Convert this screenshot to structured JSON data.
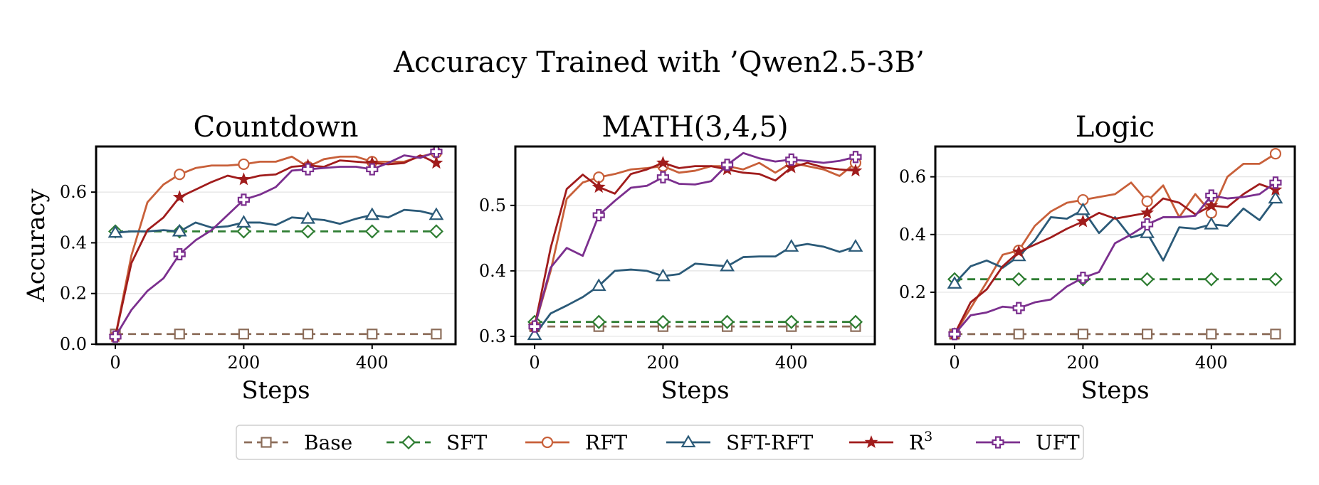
{
  "figure": {
    "title": "Accuracy Trained with ’Qwen2.5-3B’"
  },
  "legend": {
    "placement": "bottom-center",
    "entries": [
      {
        "name": "Base",
        "superscript": "",
        "color": "#8c6d5a",
        "marker": "square",
        "dashed": true
      },
      {
        "name": "SFT",
        "superscript": "",
        "color": "#2e7d32",
        "marker": "diamond",
        "dashed": true
      },
      {
        "name": "RFT",
        "superscript": "",
        "color": "#c8603a",
        "marker": "circle",
        "dashed": false
      },
      {
        "name": "SFT-RFT",
        "superscript": "",
        "color": "#2b5a78",
        "marker": "triangle",
        "dashed": false
      },
      {
        "name": "R",
        "superscript": "3",
        "color": "#a01c1c",
        "marker": "star",
        "dashed": false
      },
      {
        "name": "UFT",
        "superscript": "",
        "color": "#7b2f8e",
        "marker": "plus",
        "dashed": false
      }
    ]
  },
  "chart_data": [
    {
      "type": "line",
      "title": "Countdown",
      "xlabel": "Steps",
      "ylabel": "Accuracy",
      "xlim": [
        -30,
        530
      ],
      "ylim": [
        0.0,
        0.78
      ],
      "xticks": [
        0,
        200,
        400
      ],
      "yticks": [
        0.0,
        0.2,
        0.4,
        0.6
      ],
      "ytick_labels": [
        "0.0",
        "0.2",
        "0.4",
        "0.6"
      ],
      "grid": "horizontal",
      "series": [
        {
          "name": "Base",
          "x": [
            0,
            100,
            200,
            300,
            400,
            500
          ],
          "y": [
            0.04,
            0.04,
            0.04,
            0.04,
            0.04,
            0.04
          ],
          "marker_x": [
            0,
            100,
            200,
            300,
            400,
            500
          ]
        },
        {
          "name": "SFT",
          "x": [
            0,
            100,
            200,
            300,
            400,
            500
          ],
          "y": [
            0.445,
            0.445,
            0.445,
            0.445,
            0.445,
            0.445
          ],
          "marker_x": [
            0,
            100,
            200,
            300,
            400,
            500
          ]
        },
        {
          "name": "RFT",
          "x": [
            0,
            25,
            50,
            75,
            100,
            125,
            150,
            175,
            200,
            225,
            250,
            275,
            300,
            325,
            350,
            375,
            400,
            425,
            450,
            475,
            500
          ],
          "y": [
            0.03,
            0.35,
            0.56,
            0.63,
            0.67,
            0.695,
            0.705,
            0.705,
            0.71,
            0.72,
            0.72,
            0.74,
            0.7,
            0.73,
            0.74,
            0.74,
            0.72,
            0.72,
            0.72,
            0.74,
            0.755
          ],
          "marker_x": [
            0,
            100,
            200,
            300,
            400,
            500
          ]
        },
        {
          "name": "SFT-RFT",
          "x": [
            0,
            25,
            50,
            75,
            100,
            125,
            150,
            175,
            200,
            225,
            250,
            275,
            300,
            325,
            350,
            375,
            400,
            425,
            450,
            475,
            500
          ],
          "y": [
            0.44,
            0.445,
            0.445,
            0.45,
            0.445,
            0.48,
            0.46,
            0.465,
            0.48,
            0.48,
            0.47,
            0.5,
            0.495,
            0.49,
            0.475,
            0.495,
            0.51,
            0.5,
            0.53,
            0.525,
            0.51
          ],
          "marker_x": [
            0,
            100,
            200,
            300,
            400,
            500
          ]
        },
        {
          "name": "R3",
          "x": [
            0,
            25,
            50,
            75,
            100,
            125,
            150,
            175,
            200,
            225,
            250,
            275,
            300,
            325,
            350,
            375,
            400,
            425,
            450,
            475,
            500
          ],
          "y": [
            0.03,
            0.32,
            0.45,
            0.5,
            0.58,
            0.61,
            0.64,
            0.665,
            0.65,
            0.665,
            0.67,
            0.7,
            0.705,
            0.7,
            0.725,
            0.72,
            0.715,
            0.71,
            0.715,
            0.745,
            0.715
          ],
          "marker_x": [
            0,
            100,
            200,
            300,
            400,
            500
          ]
        },
        {
          "name": "UFT",
          "x": [
            0,
            25,
            50,
            75,
            100,
            125,
            150,
            175,
            200,
            225,
            250,
            275,
            300,
            325,
            350,
            375,
            400,
            425,
            450,
            475,
            500
          ],
          "y": [
            0.03,
            0.135,
            0.21,
            0.26,
            0.355,
            0.41,
            0.45,
            0.51,
            0.57,
            0.59,
            0.62,
            0.685,
            0.69,
            0.695,
            0.7,
            0.7,
            0.69,
            0.715,
            0.745,
            0.735,
            0.76
          ],
          "marker_x": [
            0,
            100,
            200,
            300,
            400,
            500
          ]
        }
      ]
    },
    {
      "type": "line",
      "title": "MATH(3,4,5)",
      "xlabel": "Steps",
      "ylabel": "",
      "xlim": [
        -30,
        530
      ],
      "ylim": [
        0.288,
        0.59
      ],
      "xticks": [
        0,
        200,
        400
      ],
      "yticks": [
        0.3,
        0.4,
        0.5
      ],
      "ytick_labels": [
        "0.3",
        "0.4",
        "0.5"
      ],
      "grid": "horizontal",
      "series": [
        {
          "name": "Base",
          "x": [
            0,
            100,
            200,
            300,
            400,
            500
          ],
          "y": [
            0.315,
            0.315,
            0.315,
            0.315,
            0.315,
            0.315
          ],
          "marker_x": [
            0,
            100,
            200,
            300,
            400,
            500
          ]
        },
        {
          "name": "SFT",
          "x": [
            0,
            100,
            200,
            300,
            400,
            500
          ],
          "y": [
            0.322,
            0.322,
            0.322,
            0.322,
            0.322,
            0.322
          ],
          "marker_x": [
            0,
            100,
            200,
            300,
            400,
            500
          ]
        },
        {
          "name": "RFT",
          "x": [
            0,
            25,
            50,
            75,
            100,
            125,
            150,
            175,
            200,
            225,
            250,
            275,
            300,
            325,
            350,
            375,
            400,
            425,
            450,
            475,
            500
          ],
          "y": [
            0.315,
            0.4,
            0.51,
            0.535,
            0.543,
            0.548,
            0.555,
            0.557,
            0.56,
            0.55,
            0.553,
            0.56,
            0.56,
            0.555,
            0.565,
            0.55,
            0.565,
            0.56,
            0.555,
            0.545,
            0.565
          ],
          "marker_x": [
            0,
            100,
            200,
            300,
            400,
            500
          ]
        },
        {
          "name": "SFT-RFT",
          "x": [
            0,
            25,
            50,
            75,
            100,
            125,
            150,
            175,
            200,
            225,
            250,
            275,
            300,
            325,
            350,
            375,
            400,
            425,
            450,
            475,
            500
          ],
          "y": [
            0.302,
            0.335,
            0.347,
            0.36,
            0.377,
            0.4,
            0.402,
            0.4,
            0.392,
            0.395,
            0.411,
            0.409,
            0.407,
            0.421,
            0.422,
            0.422,
            0.437,
            0.441,
            0.437,
            0.429,
            0.437
          ],
          "marker_x": [
            0,
            100,
            200,
            300,
            400,
            500
          ]
        },
        {
          "name": "R3",
          "x": [
            0,
            25,
            50,
            75,
            100,
            125,
            150,
            175,
            200,
            225,
            250,
            275,
            300,
            325,
            350,
            375,
            400,
            425,
            450,
            475,
            500
          ],
          "y": [
            0.315,
            0.435,
            0.525,
            0.547,
            0.528,
            0.518,
            0.548,
            0.555,
            0.565,
            0.557,
            0.56,
            0.56,
            0.555,
            0.55,
            0.548,
            0.538,
            0.558,
            0.565,
            0.558,
            0.555,
            0.553
          ],
          "marker_x": [
            0,
            100,
            200,
            300,
            400,
            500
          ]
        },
        {
          "name": "UFT",
          "x": [
            0,
            25,
            50,
            75,
            100,
            125,
            150,
            175,
            200,
            225,
            250,
            275,
            300,
            325,
            350,
            375,
            400,
            425,
            450,
            475,
            500
          ],
          "y": [
            0.315,
            0.405,
            0.435,
            0.423,
            0.485,
            0.507,
            0.527,
            0.53,
            0.543,
            0.533,
            0.532,
            0.537,
            0.562,
            0.58,
            0.572,
            0.567,
            0.57,
            0.568,
            0.565,
            0.568,
            0.574
          ],
          "marker_x": [
            0,
            100,
            200,
            300,
            400,
            500
          ]
        }
      ]
    },
    {
      "type": "line",
      "title": "Logic",
      "xlabel": "Steps",
      "ylabel": "",
      "xlim": [
        -30,
        530
      ],
      "ylim": [
        0.02,
        0.705
      ],
      "xticks": [
        0,
        200,
        400
      ],
      "yticks": [
        0.2,
        0.4,
        0.6
      ],
      "ytick_labels": [
        "0.2",
        "0.4",
        "0.6"
      ],
      "grid": "horizontal",
      "series": [
        {
          "name": "Base",
          "x": [
            0,
            100,
            200,
            300,
            400,
            500
          ],
          "y": [
            0.055,
            0.055,
            0.055,
            0.055,
            0.055,
            0.055
          ],
          "marker_x": [
            0,
            100,
            200,
            300,
            400,
            500
          ]
        },
        {
          "name": "SFT",
          "x": [
            0,
            100,
            200,
            300,
            400,
            500
          ],
          "y": [
            0.245,
            0.245,
            0.245,
            0.245,
            0.245,
            0.245
          ],
          "marker_x": [
            0,
            100,
            200,
            300,
            400,
            500
          ]
        },
        {
          "name": "RFT",
          "x": [
            0,
            25,
            50,
            75,
            100,
            125,
            150,
            175,
            200,
            225,
            250,
            275,
            300,
            325,
            350,
            375,
            400,
            425,
            450,
            475,
            500
          ],
          "y": [
            0.055,
            0.145,
            0.235,
            0.33,
            0.345,
            0.43,
            0.48,
            0.51,
            0.52,
            0.53,
            0.54,
            0.58,
            0.515,
            0.57,
            0.46,
            0.54,
            0.475,
            0.6,
            0.645,
            0.645,
            0.68
          ],
          "marker_x": [
            0,
            100,
            200,
            300,
            400,
            500
          ]
        },
        {
          "name": "SFT-RFT",
          "x": [
            0,
            25,
            50,
            75,
            100,
            125,
            150,
            175,
            200,
            225,
            250,
            275,
            300,
            325,
            350,
            375,
            400,
            425,
            450,
            475,
            500
          ],
          "y": [
            0.23,
            0.29,
            0.31,
            0.285,
            0.325,
            0.38,
            0.46,
            0.455,
            0.485,
            0.405,
            0.46,
            0.39,
            0.405,
            0.31,
            0.425,
            0.42,
            0.435,
            0.43,
            0.49,
            0.45,
            0.525
          ],
          "marker_x": [
            0,
            100,
            200,
            300,
            400,
            500
          ]
        },
        {
          "name": "R3",
          "x": [
            0,
            25,
            50,
            75,
            100,
            125,
            150,
            175,
            200,
            225,
            250,
            275,
            300,
            325,
            350,
            375,
            400,
            425,
            450,
            475,
            500
          ],
          "y": [
            0.055,
            0.165,
            0.21,
            0.29,
            0.34,
            0.365,
            0.39,
            0.42,
            0.445,
            0.475,
            0.455,
            0.465,
            0.475,
            0.525,
            0.51,
            0.47,
            0.5,
            0.495,
            0.54,
            0.575,
            0.555
          ],
          "marker_x": [
            0,
            100,
            200,
            300,
            400,
            500
          ]
        },
        {
          "name": "UFT",
          "x": [
            0,
            25,
            50,
            75,
            100,
            125,
            150,
            175,
            200,
            225,
            250,
            275,
            300,
            325,
            350,
            375,
            400,
            425,
            450,
            475,
            500
          ],
          "y": [
            0.055,
            0.12,
            0.13,
            0.15,
            0.145,
            0.165,
            0.175,
            0.22,
            0.25,
            0.27,
            0.37,
            0.4,
            0.435,
            0.46,
            0.46,
            0.465,
            0.535,
            0.525,
            0.53,
            0.54,
            0.58
          ],
          "marker_x": [
            0,
            100,
            200,
            300,
            400,
            500
          ]
        }
      ]
    }
  ]
}
